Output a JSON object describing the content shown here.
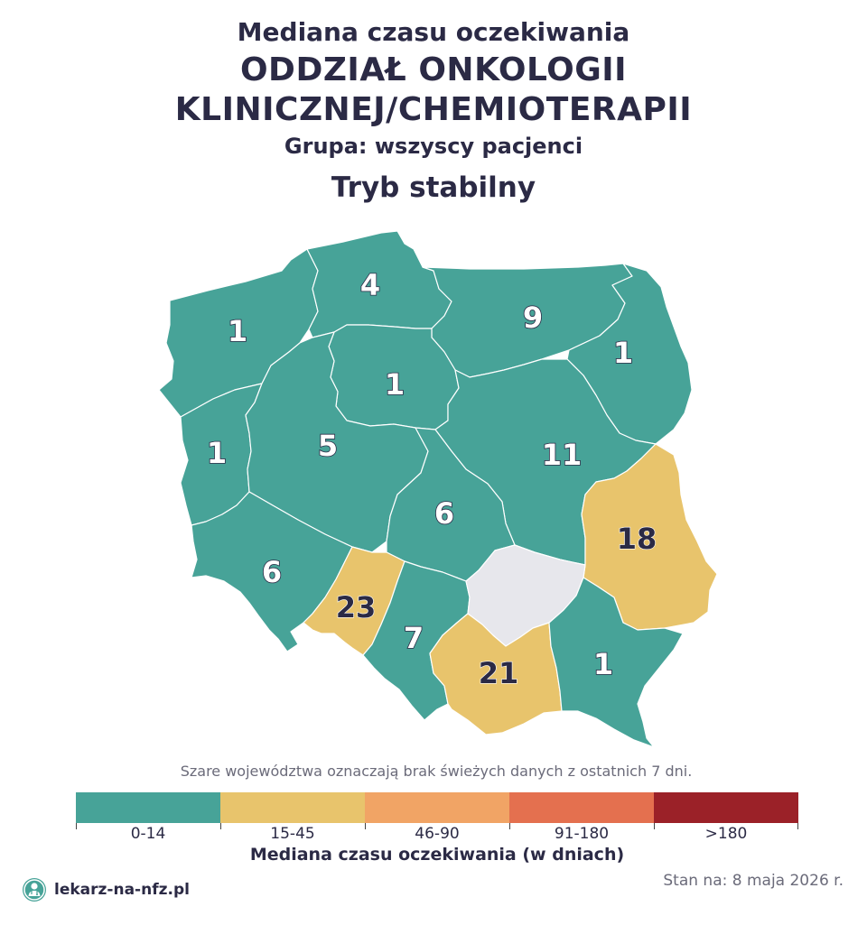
{
  "header": {
    "subtitle": "Mediana czasu oczekiwania",
    "ward_line1": "ODDZIAŁ ONKOLOGII",
    "ward_line2": "KLINICZNEJ/CHEMIOTERAPII",
    "group": "Grupa: wszyscy pacjenci",
    "mode": "Tryb stabilny"
  },
  "map": {
    "regions": [
      {
        "id": "zachodniopomorskie",
        "value": "1",
        "category": "0-14"
      },
      {
        "id": "pomorskie",
        "value": "4",
        "category": "0-14"
      },
      {
        "id": "warminsko-mazurskie",
        "value": "9",
        "category": "0-14"
      },
      {
        "id": "podlaskie",
        "value": "1",
        "category": "0-14"
      },
      {
        "id": "kujawsko-pomorskie",
        "value": "1",
        "category": "0-14"
      },
      {
        "id": "lubuskie",
        "value": "1",
        "category": "0-14"
      },
      {
        "id": "wielkopolskie",
        "value": "5",
        "category": "0-14"
      },
      {
        "id": "mazowieckie",
        "value": "11",
        "category": "0-14"
      },
      {
        "id": "lodzkie",
        "value": "6",
        "category": "0-14"
      },
      {
        "id": "lubelskie",
        "value": "18",
        "category": "15-45"
      },
      {
        "id": "dolnoslaskie",
        "value": "6",
        "category": "0-14"
      },
      {
        "id": "opolskie",
        "value": "23",
        "category": "15-45"
      },
      {
        "id": "slaskie",
        "value": "7",
        "category": "0-14"
      },
      {
        "id": "swietokrzyskie",
        "value": null,
        "category": "no-data"
      },
      {
        "id": "malopolskie",
        "value": "21",
        "category": "15-45"
      },
      {
        "id": "podkarpackie",
        "value": "1",
        "category": "0-14"
      }
    ],
    "no_data_color": "#e7e7ec",
    "border_color": "#ffffff"
  },
  "note": "Szare województwa oznaczają brak świeżych danych z ostatnich 7 dni.",
  "legend": {
    "title": "Mediana czasu oczekiwania (w dniach)",
    "bins": [
      {
        "label": "0-14",
        "color": "#47a398"
      },
      {
        "label": "15-45",
        "color": "#e8c46c"
      },
      {
        "label": "46-90",
        "color": "#f1a465"
      },
      {
        "label": "91-180",
        "color": "#e4704f"
      },
      {
        "label": ">180",
        "color": "#9b2128"
      }
    ]
  },
  "footer": {
    "brand": "lekarz-na-nfz.pl",
    "brand_icon": "doctor-icon",
    "date": "Stan na: 8 maja 2026 r."
  }
}
